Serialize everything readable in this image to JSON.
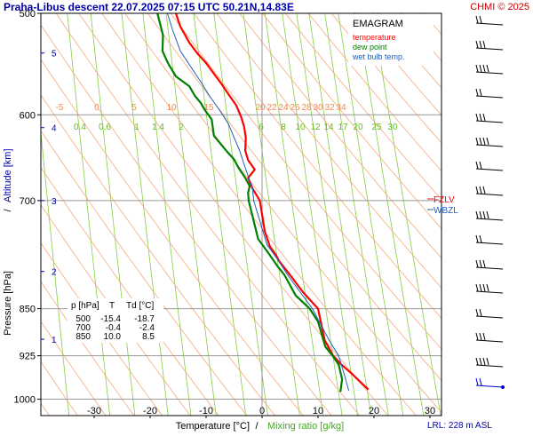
{
  "header": {
    "title": "Praha-Libus   descent  22.07.2025 07:15 UTC  50.21N,14.83E",
    "copyright": "CHMI © 2025"
  },
  "legend": {
    "title": "EMAGRAM",
    "items": [
      {
        "label": "temperature",
        "color": "#ff0000"
      },
      {
        "label": "dew point",
        "color": "#008000"
      },
      {
        "label": "wet bulb temp.",
        "color": "#1f5fbf"
      }
    ]
  },
  "axes": {
    "xlabel_temp": "Temperature [°C]",
    "xlabel_sep": "/",
    "xlabel_mix": "Mixing ratio [g/kg]",
    "ylabel_pressure": "Pressure [hPa]",
    "ylabel_sep": "/",
    "ylabel_alt": "Altitude [km]"
  },
  "footer": {
    "lrl": "LRL: 228 m ASL"
  },
  "levels": [
    {
      "label": "FZLV",
      "color": "#ff0000"
    },
    {
      "label": "WBZL",
      "color": "#1f5fbf"
    }
  ],
  "table": {
    "headers": [
      "p [hPa]",
      "T",
      "Td [°C]"
    ],
    "rows": [
      [
        "500",
        "-15.4",
        "-18.7"
      ],
      [
        "700",
        "-0.4",
        "-2.4"
      ],
      [
        "850",
        "10.0",
        "8.5"
      ]
    ]
  },
  "colors": {
    "temperature": "#ff0000",
    "dewpoint": "#008000",
    "wetbulb": "#1f5fbf",
    "axis_text": "#0000aa",
    "grid": "#999999",
    "adiabat": "#f5a97a",
    "mixing_ratio": "#88cc44"
  },
  "chart_data": {
    "type": "line",
    "diagram": "emagram",
    "x_axis": {
      "unit": "°C",
      "range": [
        -39,
        39
      ],
      "ticks": [
        -30,
        -20,
        -10,
        0,
        10,
        20,
        30
      ]
    },
    "y_axis": {
      "unit": "hPa",
      "scale": "log",
      "range": [
        1030,
        500
      ],
      "ticks": [
        500,
        600,
        700,
        850,
        925,
        1000
      ]
    },
    "altitude_ticks_km": [
      1,
      2,
      3,
      4,
      5
    ],
    "altitude_tick_pressures": [
      898,
      795,
      700,
      614,
      537
    ],
    "dry_adiabat_labels": [
      -5,
      0,
      5,
      10,
      15,
      20,
      22,
      24,
      26,
      28,
      30,
      32,
      34
    ],
    "mixing_ratio_labels": [
      0.4,
      0.6,
      1,
      1.4,
      2,
      6,
      8,
      10,
      12,
      14,
      17,
      20,
      25,
      30
    ],
    "grid": true,
    "legend_position": "top-right",
    "series": [
      {
        "name": "temperature",
        "points": [
          [
            19.0,
            983
          ],
          [
            17.6,
            970
          ],
          [
            16.0,
            955
          ],
          [
            14.2,
            940
          ],
          [
            12.7,
            925
          ],
          [
            11.2,
            900
          ],
          [
            10.0,
            850
          ],
          [
            7.3,
            825
          ],
          [
            5.0,
            800
          ],
          [
            4.0,
            790
          ],
          [
            3.0,
            780
          ],
          [
            2.5,
            772
          ],
          [
            1.4,
            760
          ],
          [
            0.5,
            740
          ],
          [
            -0.4,
            700
          ],
          [
            -1.7,
            685
          ],
          [
            -2.5,
            672
          ],
          [
            -1.3,
            662
          ],
          [
            -2.5,
            651
          ],
          [
            -3.0,
            640
          ],
          [
            -2.9,
            625
          ],
          [
            -3.2,
            613
          ],
          [
            -3.7,
            603
          ],
          [
            -4.6,
            590
          ],
          [
            -5.8,
            580
          ],
          [
            -7.2,
            568
          ],
          [
            -8.9,
            555
          ],
          [
            -10.1,
            546
          ],
          [
            -11.6,
            537
          ],
          [
            -13.0,
            527
          ],
          [
            -14.6,
            512
          ],
          [
            -15.4,
            500
          ]
        ]
      },
      {
        "name": "dew point",
        "points": [
          [
            14.0,
            987
          ],
          [
            14.3,
            965
          ],
          [
            13.7,
            940
          ],
          [
            12.6,
            925
          ],
          [
            11.3,
            910
          ],
          [
            10.0,
            870
          ],
          [
            8.5,
            850
          ],
          [
            6.0,
            830
          ],
          [
            4.0,
            800
          ],
          [
            2.8,
            788
          ],
          [
            1.2,
            770
          ],
          [
            -0.7,
            750
          ],
          [
            -2.4,
            700
          ],
          [
            -2.5,
            690
          ],
          [
            -2.2,
            682
          ],
          [
            -3.0,
            672
          ],
          [
            -4.2,
            660
          ],
          [
            -5.0,
            650
          ],
          [
            -6.4,
            640
          ],
          [
            -8.6,
            623
          ],
          [
            -9.0,
            605
          ],
          [
            -10.2,
            595
          ],
          [
            -11.0,
            587
          ],
          [
            -12.0,
            580
          ],
          [
            -13.0,
            570
          ],
          [
            -15.4,
            560
          ],
          [
            -16.8,
            547
          ],
          [
            -17.8,
            535
          ],
          [
            -17.7,
            520
          ],
          [
            -18.7,
            500
          ]
        ]
      },
      {
        "name": "wet bulb temp.",
        "points": [
          [
            15.5,
            985
          ],
          [
            14.8,
            960
          ],
          [
            13.7,
            925
          ],
          [
            12.0,
            900
          ],
          [
            9.0,
            850
          ],
          [
            5.0,
            805
          ],
          [
            2.5,
            775
          ],
          [
            0.9,
            758
          ],
          [
            -1.5,
            700
          ],
          [
            -1.7,
            685
          ],
          [
            -3.0,
            660
          ],
          [
            -4.0,
            640
          ],
          [
            -5.0,
            625
          ],
          [
            -6.0,
            610
          ],
          [
            -7.6,
            595
          ],
          [
            -9.4,
            580
          ],
          [
            -11.0,
            565
          ],
          [
            -12.8,
            550
          ],
          [
            -14.6,
            535
          ],
          [
            -16.0,
            515
          ],
          [
            -16.9,
            500
          ]
        ]
      }
    ]
  }
}
